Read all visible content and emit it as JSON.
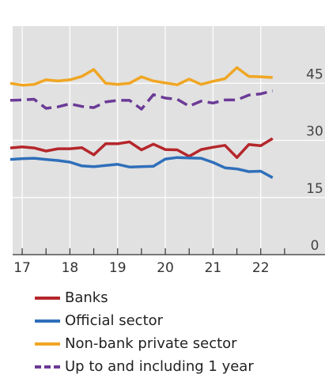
{
  "chart_data": {
    "type": "line",
    "title": "",
    "xlabel": "",
    "ylabel": "",
    "x_ticks": [
      {
        "value": 17,
        "label": "17"
      },
      {
        "value": 18,
        "label": "18"
      },
      {
        "value": 19,
        "label": "19"
      },
      {
        "value": 20,
        "label": "20"
      },
      {
        "value": 21,
        "label": "21"
      },
      {
        "value": 22,
        "label": "22"
      }
    ],
    "xlim": [
      16.8,
      22.8
    ],
    "ylim": [
      0,
      60
    ],
    "y_ticks": [
      {
        "value": 0,
        "label": "0"
      },
      {
        "value": 15,
        "label": "15"
      },
      {
        "value": 30,
        "label": "30"
      },
      {
        "value": 45,
        "label": "45"
      }
    ],
    "grid": true,
    "legend_position": "bottom",
    "x": [
      16.75,
      17.0,
      17.25,
      17.5,
      17.75,
      18.0,
      18.25,
      18.5,
      18.75,
      19.0,
      19.25,
      19.5,
      19.75,
      20.0,
      20.25,
      20.5,
      20.75,
      21.0,
      21.25,
      21.5,
      21.75,
      22.0,
      22.25
    ],
    "series": [
      {
        "name": "Banks",
        "color": "#b5262b",
        "style": "solid",
        "values": [
          28.0,
          28.3,
          28.0,
          27.2,
          27.8,
          27.8,
          28.1,
          26.2,
          29.1,
          29.1,
          29.6,
          27.5,
          29.0,
          27.6,
          27.5,
          25.8,
          27.6,
          28.2,
          28.7,
          25.5,
          28.9,
          28.6,
          30.5
        ]
      },
      {
        "name": "Official sector",
        "color": "#2f6fba",
        "style": "solid",
        "values": [
          25.0,
          25.2,
          25.3,
          25.0,
          24.7,
          24.3,
          23.3,
          23.1,
          23.4,
          23.7,
          23.0,
          23.1,
          23.2,
          25.1,
          25.5,
          25.4,
          25.3,
          24.2,
          22.8,
          22.5,
          21.8,
          21.9,
          20.2
        ]
      },
      {
        "name": "Non-bank private sector",
        "color": "#f0a623",
        "style": "solid",
        "values": [
          45.0,
          44.5,
          44.7,
          45.9,
          45.6,
          45.9,
          46.8,
          48.6,
          45.0,
          44.7,
          45.0,
          46.7,
          45.6,
          45.1,
          44.6,
          46.1,
          44.7,
          45.5,
          46.2,
          49.1,
          46.8,
          46.7,
          46.5
        ]
      },
      {
        "name": "Up to and including 1 year",
        "color": "#6b3a96",
        "style": "dashed",
        "values": [
          40.5,
          40.6,
          40.8,
          38.4,
          38.8,
          39.6,
          38.9,
          38.6,
          40.1,
          40.5,
          40.5,
          38.2,
          42.0,
          41.1,
          40.8,
          39.0,
          40.3,
          39.8,
          40.6,
          40.6,
          41.9,
          42.2,
          43.0
        ]
      }
    ]
  }
}
